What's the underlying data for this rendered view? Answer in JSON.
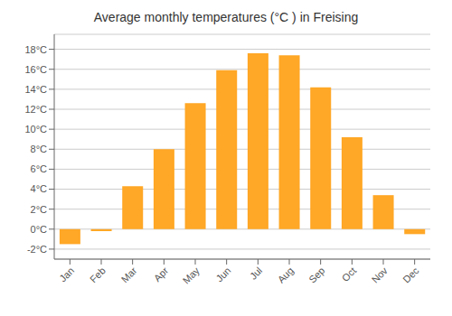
{
  "chart_data": {
    "type": "bar",
    "title": "Average monthly temperatures (°C ) in Freising",
    "categories": [
      "Jan",
      "Feb",
      "Mar",
      "Apr",
      "May",
      "Jun",
      "Jul",
      "Aug",
      "Sep",
      "Oct",
      "Nov",
      "Dec"
    ],
    "values": [
      -1.5,
      -0.2,
      4.3,
      8.0,
      12.6,
      15.9,
      17.6,
      17.4,
      14.2,
      9.2,
      3.4,
      -0.5
    ],
    "color": "#FFA726",
    "ylim": [
      -3,
      19.5
    ],
    "yticks": [
      {
        "value": -2,
        "label": "-2°C"
      },
      {
        "value": 0,
        "label": "0°C"
      },
      {
        "value": 2,
        "label": "2°C"
      },
      {
        "value": 4,
        "label": "4°C"
      },
      {
        "value": 6,
        "label": "6°C"
      },
      {
        "value": 8,
        "label": "8°C"
      },
      {
        "value": 10,
        "label": "10°C"
      },
      {
        "value": 12,
        "label": "12°C"
      },
      {
        "value": 14,
        "label": "14°C"
      },
      {
        "value": 16,
        "label": "16°C"
      },
      {
        "value": 18,
        "label": "18°C"
      }
    ],
    "grid": true
  }
}
